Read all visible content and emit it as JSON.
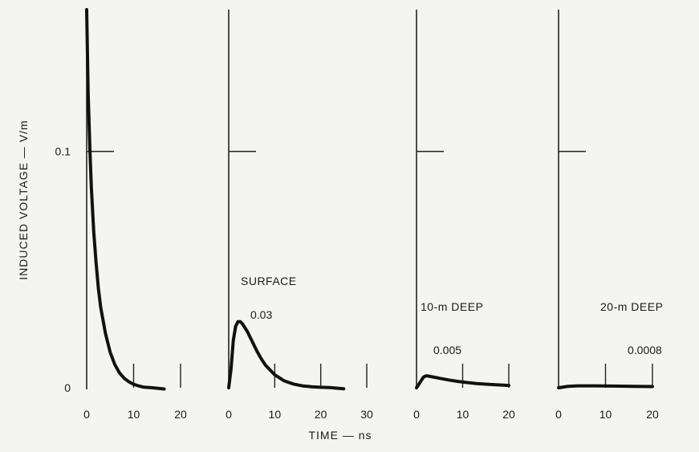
{
  "figure": {
    "ylabel": "INDUCED VOLTAGE — V/m",
    "xlabel": "TIME — ns"
  },
  "chart_data": [
    {
      "type": "line",
      "title": "",
      "xlabel": "",
      "ylabel": "INDUCED VOLTAGE — V/m",
      "xlim": [
        0,
        20
      ],
      "ylim": [
        0,
        0.16
      ],
      "x_ticks": [
        "0",
        "10",
        "20"
      ],
      "y_ticks": [
        "0",
        "0.1"
      ],
      "grid": false,
      "series": [
        {
          "values": [
            [
              0,
              0.16
            ],
            [
              0.3,
              0.125
            ],
            [
              0.7,
              0.1
            ],
            [
              1,
              0.085
            ],
            [
              1.5,
              0.066
            ],
            [
              2,
              0.053
            ],
            [
              2.5,
              0.042
            ],
            [
              3,
              0.034
            ],
            [
              4,
              0.023
            ],
            [
              5,
              0.015
            ],
            [
              6,
              0.0098
            ],
            [
              7,
              0.0063
            ],
            [
              8,
              0.004
            ],
            [
              9,
              0.0025
            ],
            [
              10,
              0.0015
            ],
            [
              11,
              0.0008
            ],
            [
              12,
              0.0003
            ],
            [
              14,
              0
            ],
            [
              16.5,
              -0.0005
            ]
          ]
        }
      ]
    },
    {
      "type": "line",
      "title": "SURFACE",
      "peak_label": "0.03",
      "xlim": [
        0,
        30
      ],
      "ylim": [
        0,
        0.16
      ],
      "x_ticks": [
        "0",
        "10",
        "20",
        "30"
      ],
      "grid": false,
      "series": [
        {
          "values": [
            [
              0,
              0
            ],
            [
              0.5,
              0.008
            ],
            [
              1,
              0.02
            ],
            [
              1.5,
              0.026
            ],
            [
              2,
              0.028
            ],
            [
              2.5,
              0.028
            ],
            [
              3,
              0.027
            ],
            [
              4,
              0.024
            ],
            [
              5,
              0.02
            ],
            [
              6,
              0.016
            ],
            [
              7,
              0.0125
            ],
            [
              8,
              0.0095
            ],
            [
              10,
              0.0055
            ],
            [
              12,
              0.003
            ],
            [
              14,
              0.0016
            ],
            [
              16,
              0.0008
            ],
            [
              18,
              0.0004
            ],
            [
              20,
              0.0002
            ],
            [
              22,
              0.0001
            ],
            [
              25,
              -0.0004
            ]
          ]
        }
      ]
    },
    {
      "type": "line",
      "title": "10-m DEEP",
      "peak_label": "0.005",
      "xlim": [
        0,
        20
      ],
      "ylim": [
        0,
        0.16
      ],
      "x_ticks": [
        "0",
        "10",
        "20"
      ],
      "grid": false,
      "series": [
        {
          "values": [
            [
              0,
              0
            ],
            [
              0.5,
              0.0015
            ],
            [
              1,
              0.003
            ],
            [
              1.5,
              0.0045
            ],
            [
              2,
              0.005
            ],
            [
              2.5,
              0.005
            ],
            [
              3,
              0.0048
            ],
            [
              4,
              0.0044
            ],
            [
              5,
              0.004
            ],
            [
              7,
              0.0033
            ],
            [
              9,
              0.0027
            ],
            [
              11,
              0.0022
            ],
            [
              13,
              0.0018
            ],
            [
              16,
              0.0014
            ],
            [
              20,
              0.001
            ]
          ]
        }
      ]
    },
    {
      "type": "line",
      "title": "20-m DEEP",
      "peak_label": "0.0008",
      "xlim": [
        0,
        20
      ],
      "ylim": [
        0,
        0.16
      ],
      "x_ticks": [
        "0",
        "10",
        "20"
      ],
      "grid": false,
      "series": [
        {
          "values": [
            [
              0,
              0
            ],
            [
              1,
              0.0003
            ],
            [
              2,
              0.0006
            ],
            [
              4,
              0.0008
            ],
            [
              8,
              0.0008
            ],
            [
              12,
              0.0007
            ],
            [
              16,
              0.0006
            ],
            [
              20,
              0.0005
            ]
          ]
        }
      ]
    }
  ]
}
